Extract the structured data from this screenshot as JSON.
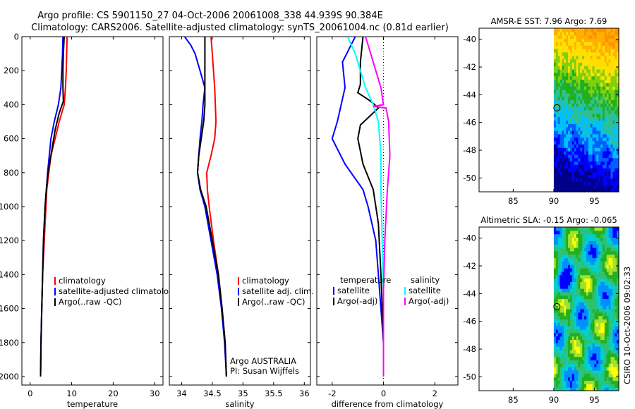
{
  "title": {
    "line1": "Argo profile: CS 5901150_27 04-Oct-2006 20061008_338 44.939S 90.384E",
    "line2": "Climatology: CARS2006. Satellite-adjusted climatology: synTS_20061004.nc (0.81d earlier)"
  },
  "colors": {
    "clim": "#ff0000",
    "sat": "#0000ff",
    "argo": "#000000",
    "sat2": "#00ffff",
    "argo2": "#ff00ff"
  },
  "footer": {
    "operator": "Argo AUSTRALIA",
    "pi": "PI: Susan Wijffels"
  },
  "side_text": "CSIRO 10-Oct-2006 09:02:33",
  "chart_data": [
    {
      "type": "line",
      "xlabel": "temperature",
      "xlim": [
        -2,
        32
      ],
      "ylim": [
        2050,
        0
      ],
      "xticks": [
        0,
        10,
        20,
        30
      ],
      "yticks": [
        0,
        200,
        400,
        600,
        800,
        1000,
        1200,
        1400,
        1600,
        1800,
        2000
      ],
      "legend": [
        "climatology",
        "satellite-adjusted climatology",
        "Argo(..raw -QC)"
      ],
      "series": [
        {
          "key": "clim",
          "points": [
            [
              8.9,
              0
            ],
            [
              8.8,
              100
            ],
            [
              8.7,
              200
            ],
            [
              8.5,
              300
            ],
            [
              8.2,
              400
            ],
            [
              7.0,
              500
            ],
            [
              6.0,
              600
            ],
            [
              5.0,
              700
            ],
            [
              4.5,
              800
            ],
            [
              4.0,
              900
            ],
            [
              3.8,
              1000
            ],
            [
              3.4,
              1200
            ],
            [
              3.0,
              1400
            ],
            [
              2.8,
              1600
            ],
            [
              2.6,
              1800
            ],
            [
              2.5,
              2000
            ]
          ]
        },
        {
          "key": "sat",
          "points": [
            [
              7.9,
              0
            ],
            [
              7.8,
              100
            ],
            [
              7.6,
              200
            ],
            [
              7.4,
              300
            ],
            [
              6.8,
              400
            ],
            [
              5.8,
              500
            ],
            [
              5.0,
              600
            ],
            [
              4.6,
              700
            ],
            [
              4.2,
              800
            ],
            [
              3.9,
              900
            ],
            [
              3.6,
              1000
            ],
            [
              3.2,
              1200
            ],
            [
              3.0,
              1400
            ],
            [
              2.8,
              1600
            ],
            [
              2.6,
              1800
            ],
            [
              2.5,
              2000
            ]
          ]
        },
        {
          "key": "argo",
          "points": [
            [
              8.2,
              0
            ],
            [
              8.0,
              100
            ],
            [
              7.9,
              200
            ],
            [
              7.9,
              300
            ],
            [
              8.0,
              380
            ],
            [
              7.0,
              450
            ],
            [
              6.0,
              550
            ],
            [
              5.0,
              700
            ],
            [
              4.3,
              800
            ],
            [
              3.9,
              900
            ],
            [
              3.6,
              1000
            ],
            [
              3.2,
              1200
            ],
            [
              3.0,
              1400
            ],
            [
              2.8,
              1600
            ],
            [
              2.6,
              1800
            ],
            [
              2.5,
              2000
            ]
          ]
        }
      ]
    },
    {
      "type": "line",
      "xlabel": "salinity",
      "xlim": [
        33.8,
        36.1
      ],
      "ylim": [
        2050,
        0
      ],
      "xticks": [
        34,
        34.5,
        35,
        35.5,
        36
      ],
      "xticklabels": [
        "34",
        "34.5",
        "35",
        "35.5",
        "36"
      ],
      "yticks": [
        0,
        200,
        400,
        600,
        800,
        1000,
        1200,
        1400,
        1600,
        1800,
        2000
      ],
      "legend": [
        "climatology",
        "satellite adj. clim.",
        "Argo(..raw -QC)"
      ],
      "series": [
        {
          "key": "clim",
          "points": [
            [
              34.48,
              0
            ],
            [
              34.5,
              100
            ],
            [
              34.52,
              200
            ],
            [
              34.54,
              300
            ],
            [
              34.55,
              400
            ],
            [
              34.56,
              500
            ],
            [
              34.54,
              600
            ],
            [
              34.48,
              700
            ],
            [
              34.41,
              800
            ],
            [
              34.42,
              900
            ],
            [
              34.45,
              1000
            ],
            [
              34.52,
              1200
            ],
            [
              34.6,
              1400
            ],
            [
              34.66,
              1600
            ],
            [
              34.71,
              1800
            ],
            [
              34.73,
              2000
            ]
          ]
        },
        {
          "key": "sat",
          "points": [
            [
              34.05,
              0
            ],
            [
              34.15,
              50
            ],
            [
              34.22,
              100
            ],
            [
              34.3,
              200
            ],
            [
              34.38,
              300
            ],
            [
              34.35,
              400
            ],
            [
              34.33,
              500
            ],
            [
              34.3,
              600
            ],
            [
              34.28,
              700
            ],
            [
              34.26,
              800
            ],
            [
              34.3,
              900
            ],
            [
              34.38,
              1000
            ],
            [
              34.48,
              1200
            ],
            [
              34.58,
              1400
            ],
            [
              34.65,
              1600
            ],
            [
              34.7,
              1800
            ],
            [
              34.73,
              2000
            ]
          ]
        },
        {
          "key": "argo",
          "points": [
            [
              34.38,
              0
            ],
            [
              34.38,
              100
            ],
            [
              34.38,
              200
            ],
            [
              34.38,
              300
            ],
            [
              34.38,
              400
            ],
            [
              34.36,
              500
            ],
            [
              34.32,
              600
            ],
            [
              34.28,
              700
            ],
            [
              34.26,
              800
            ],
            [
              34.31,
              900
            ],
            [
              34.4,
              1000
            ],
            [
              34.5,
              1200
            ],
            [
              34.6,
              1400
            ],
            [
              34.66,
              1600
            ],
            [
              34.71,
              1800
            ],
            [
              34.73,
              2000
            ]
          ]
        }
      ]
    },
    {
      "type": "line",
      "xlabel": "difference from climatology",
      "xlim": [
        -2.6,
        2.9
      ],
      "ylim": [
        2050,
        0
      ],
      "xticks": [
        -2,
        0,
        2
      ],
      "yticks": [
        0,
        200,
        400,
        600,
        800,
        1000,
        1200,
        1400,
        1600,
        1800,
        2000
      ],
      "legend_titles": [
        "temperature",
        "salinity"
      ],
      "legend": [
        "satellite",
        "Argo(-adj)",
        "satellite",
        "Argo(-adj)"
      ],
      "series": [
        {
          "key": "sat",
          "group": "temperature",
          "points": [
            [
              -1.1,
              0
            ],
            [
              -1.6,
              150
            ],
            [
              -1.5,
              300
            ],
            [
              -1.8,
              500
            ],
            [
              -2.0,
              600
            ],
            [
              -1.5,
              750
            ],
            [
              -0.8,
              900
            ],
            [
              -0.6,
              1000
            ],
            [
              -0.3,
              1200
            ],
            [
              -0.2,
              1400
            ],
            [
              -0.1,
              1600
            ],
            [
              0,
              1800
            ],
            [
              0,
              2000
            ]
          ]
        },
        {
          "key": "argo",
          "group": "temperature",
          "points": [
            [
              -0.8,
              0
            ],
            [
              -0.9,
              150
            ],
            [
              -0.9,
              280
            ],
            [
              -1.0,
              330
            ],
            [
              -0.5,
              380
            ],
            [
              -0.2,
              420
            ],
            [
              -0.9,
              520
            ],
            [
              -1.0,
              600
            ],
            [
              -0.8,
              750
            ],
            [
              -0.4,
              900
            ],
            [
              -0.2,
              1100
            ],
            [
              -0.1,
              1400
            ],
            [
              -0.05,
              1600
            ],
            [
              0,
              1800
            ],
            [
              0,
              2000
            ]
          ]
        },
        {
          "key": "sat2",
          "group": "salinity",
          "points": [
            [
              -1.4,
              0
            ],
            [
              -1.1,
              100
            ],
            [
              -0.9,
              200
            ],
            [
              -0.7,
              300
            ],
            [
              -0.4,
              400
            ],
            [
              -0.2,
              500
            ],
            [
              -0.1,
              700
            ],
            [
              -0.1,
              900
            ],
            [
              -0.05,
              1200
            ],
            [
              0,
              1500
            ],
            [
              0,
              1800
            ],
            [
              0,
              2000
            ]
          ]
        },
        {
          "key": "argo2",
          "group": "salinity",
          "points": [
            [
              -0.7,
              0
            ],
            [
              -0.5,
              100
            ],
            [
              -0.3,
              200
            ],
            [
              -0.1,
              300
            ],
            [
              0,
              400
            ],
            [
              -0.4,
              410
            ],
            [
              0.1,
              420
            ],
            [
              0.2,
              500
            ],
            [
              0.25,
              700
            ],
            [
              0.15,
              900
            ],
            [
              0.05,
              1200
            ],
            [
              0,
              1500
            ],
            [
              0,
              2000
            ]
          ]
        }
      ]
    },
    {
      "type": "heatmap",
      "title": "AMSR-E SST: 7.96  Argo: 7.69",
      "xlim": [
        80.8,
        98
      ],
      "ylim": [
        -51,
        -39.2
      ],
      "xticks": [
        85,
        90,
        95
      ],
      "yticks": [
        -40,
        -42,
        -44,
        -46,
        -48,
        -50
      ],
      "data_xrange": [
        90,
        98
      ],
      "marker": [
        90.384,
        -44.939
      ],
      "scheme": "sst"
    },
    {
      "type": "heatmap",
      "title": "Altimetric SLA: -0.15  Argo: -0.065",
      "xlim": [
        80.8,
        98
      ],
      "ylim": [
        -51,
        -39.2
      ],
      "xticks": [
        85,
        90,
        95
      ],
      "yticks": [
        -40,
        -42,
        -44,
        -46,
        -48,
        -50
      ],
      "data_xrange": [
        90,
        98
      ],
      "marker": [
        90.384,
        -44.939
      ],
      "scheme": "sla"
    }
  ]
}
